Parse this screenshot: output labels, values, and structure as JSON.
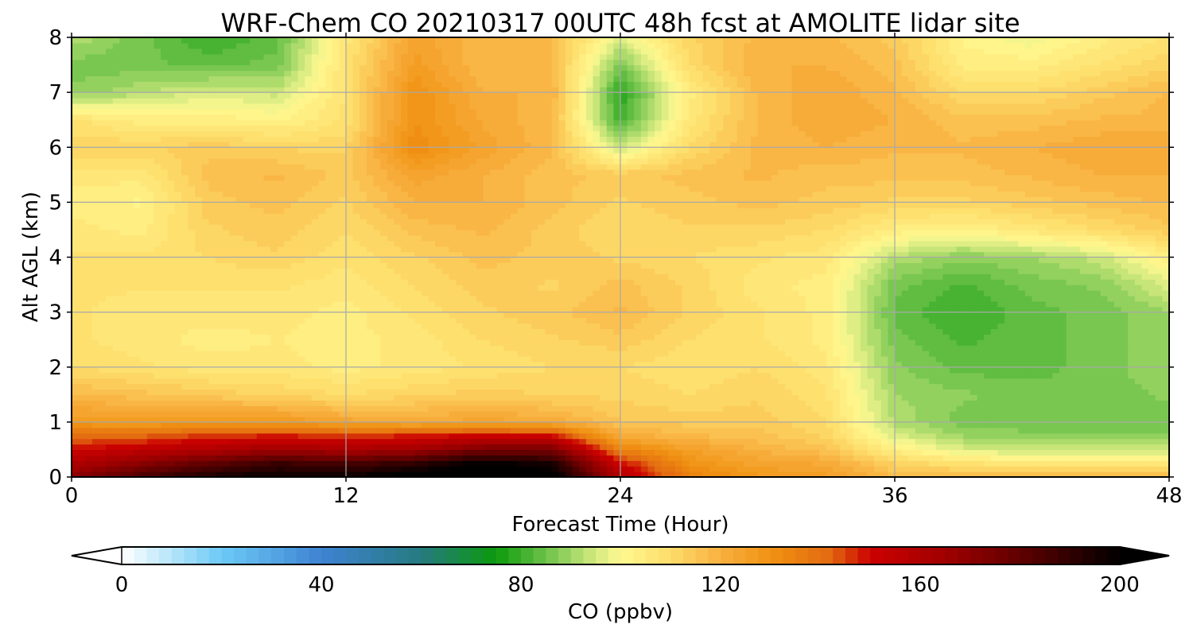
{
  "chart_data": {
    "type": "heatmap",
    "title": "WRF-Chem CO  20210317 00UTC 48h fcst at AMOLITE lidar site",
    "xlabel": "Forecast Time (Hour)",
    "ylabel": "Alt AGL (km)",
    "xlim": [
      0,
      48
    ],
    "ylim": [
      0,
      8
    ],
    "xticks": [
      0,
      12,
      24,
      36,
      48
    ],
    "yticks": [
      0,
      1,
      2,
      3,
      4,
      5,
      6,
      7,
      8
    ],
    "grid": true,
    "x": [
      0,
      3,
      6,
      9,
      12,
      15,
      18,
      21,
      24,
      27,
      30,
      33,
      36,
      39,
      42,
      45,
      48
    ],
    "y": [
      0,
      0.25,
      0.5,
      0.75,
      1,
      1.5,
      2,
      2.5,
      3,
      3.5,
      4,
      4.5,
      5,
      5.5,
      6,
      6.5,
      7,
      7.5,
      8
    ],
    "z": [
      [
        170,
        185,
        195,
        200,
        198,
        205,
        210,
        205,
        160,
        135,
        128,
        126,
        118,
        118,
        118,
        118,
        118
      ],
      [
        160,
        170,
        180,
        188,
        185,
        190,
        200,
        195,
        150,
        130,
        124,
        122,
        112,
        108,
        106,
        106,
        106
      ],
      [
        150,
        155,
        160,
        165,
        162,
        165,
        175,
        175,
        135,
        125,
        120,
        116,
        104,
        96,
        94,
        94,
        94
      ],
      [
        140,
        142,
        146,
        148,
        146,
        148,
        152,
        150,
        122,
        118,
        116,
        112,
        96,
        90,
        88,
        88,
        88
      ],
      [
        128,
        126,
        128,
        128,
        124,
        122,
        124,
        122,
        115,
        114,
        114,
        110,
        92,
        86,
        86,
        86,
        86
      ],
      [
        118,
        116,
        114,
        112,
        110,
        112,
        114,
        112,
        112,
        110,
        112,
        108,
        90,
        88,
        86,
        86,
        88
      ],
      [
        110,
        108,
        106,
        106,
        104,
        106,
        108,
        110,
        110,
        108,
        110,
        106,
        88,
        84,
        84,
        86,
        90
      ],
      [
        108,
        106,
        104,
        105,
        104,
        106,
        110,
        112,
        114,
        110,
        108,
        104,
        86,
        82,
        84,
        86,
        90
      ],
      [
        108,
        106,
        106,
        106,
        104,
        108,
        112,
        114,
        118,
        112,
        108,
        104,
        84,
        80,
        84,
        86,
        90
      ],
      [
        108,
        108,
        108,
        108,
        106,
        110,
        114,
        112,
        116,
        112,
        106,
        104,
        86,
        82,
        86,
        88,
        96
      ],
      [
        108,
        108,
        110,
        112,
        108,
        112,
        116,
        114,
        112,
        110,
        108,
        106,
        92,
        88,
        90,
        94,
        104
      ],
      [
        106,
        104,
        112,
        114,
        110,
        116,
        118,
        114,
        110,
        112,
        112,
        110,
        104,
        102,
        106,
        110,
        114
      ],
      [
        104,
        102,
        114,
        116,
        112,
        120,
        120,
        116,
        112,
        114,
        116,
        114,
        112,
        112,
        114,
        116,
        118
      ],
      [
        106,
        106,
        116,
        118,
        114,
        124,
        120,
        116,
        114,
        116,
        118,
        116,
        116,
        116,
        118,
        120,
        120
      ],
      [
        112,
        112,
        114,
        112,
        112,
        132,
        124,
        118,
        94,
        110,
        118,
        120,
        118,
        118,
        120,
        122,
        122
      ],
      [
        108,
        104,
        104,
        102,
        108,
        130,
        122,
        118,
        80,
        106,
        118,
        122,
        120,
        116,
        116,
        118,
        118
      ],
      [
        88,
        92,
        96,
        94,
        108,
        130,
        120,
        120,
        78,
        104,
        118,
        122,
        118,
        110,
        110,
        114,
        118
      ],
      [
        86,
        86,
        84,
        86,
        108,
        126,
        118,
        118,
        86,
        110,
        120,
        120,
        116,
        104,
        104,
        108,
        112
      ],
      [
        92,
        86,
        80,
        84,
        106,
        124,
        118,
        118,
        96,
        112,
        118,
        118,
        114,
        102,
        98,
        104,
        108
      ]
    ],
    "colorbar": {
      "label": "CO  (ppbv)",
      "min": 0,
      "max": 200,
      "step": 2.5,
      "ticks": [
        0,
        40,
        80,
        120,
        160,
        200
      ],
      "extend": "both",
      "colors": [
        [
          0,
          "#ffffff"
        ],
        [
          20,
          "#6ccaf6"
        ],
        [
          40,
          "#3f82d2"
        ],
        [
          60,
          "#257a80"
        ],
        [
          75,
          "#0c9a0c"
        ],
        [
          85,
          "#6cc24a"
        ],
        [
          95,
          "#d4ea80"
        ],
        [
          100,
          "#fff890"
        ],
        [
          110,
          "#fedd6a"
        ],
        [
          120,
          "#f8b040"
        ],
        [
          130,
          "#f09212"
        ],
        [
          142,
          "#e26a10"
        ],
        [
          150,
          "#cc0000"
        ],
        [
          165,
          "#a00000"
        ],
        [
          180,
          "#600000"
        ],
        [
          200,
          "#000000"
        ]
      ]
    }
  }
}
